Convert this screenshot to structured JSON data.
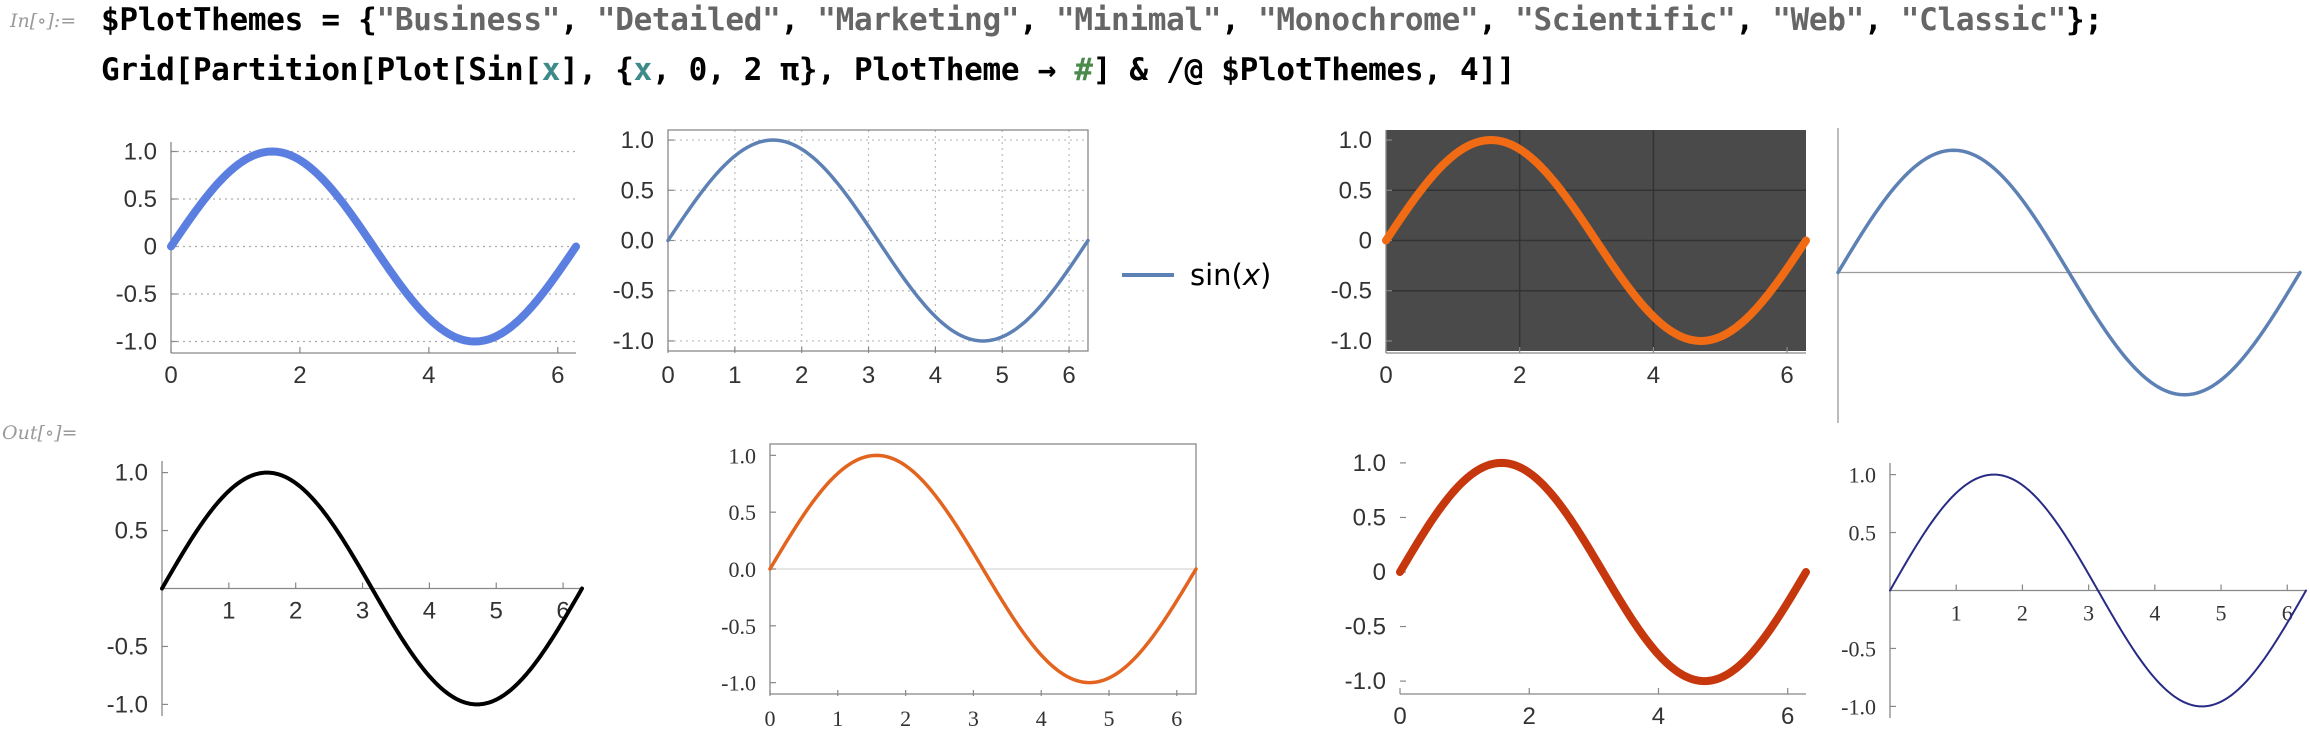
{
  "notebook": {
    "in_label": "In[∘]:=",
    "out_label": "Out[∘]=",
    "code_line1": [
      {
        "t": "$PlotThemes = {",
        "c": ""
      },
      {
        "t": "\"Business\"",
        "c": "str"
      },
      {
        "t": ", ",
        "c": ""
      },
      {
        "t": "\"Detailed\"",
        "c": "str"
      },
      {
        "t": ", ",
        "c": ""
      },
      {
        "t": "\"Marketing\"",
        "c": "str"
      },
      {
        "t": ", ",
        "c": ""
      },
      {
        "t": "\"Minimal\"",
        "c": "str"
      },
      {
        "t": ", ",
        "c": ""
      },
      {
        "t": "\"Monochrome\"",
        "c": "str"
      },
      {
        "t": ", ",
        "c": ""
      },
      {
        "t": "\"Scientific\"",
        "c": "str"
      },
      {
        "t": ", ",
        "c": ""
      },
      {
        "t": "\"Web\"",
        "c": "str"
      },
      {
        "t": ", ",
        "c": ""
      },
      {
        "t": "\"Classic\"",
        "c": "str"
      },
      {
        "t": "};",
        "c": ""
      }
    ],
    "code_line2": [
      {
        "t": "Grid[Partition[Plot[Sin[",
        "c": ""
      },
      {
        "t": "x",
        "c": "var"
      },
      {
        "t": "], {",
        "c": ""
      },
      {
        "t": "x",
        "c": "var"
      },
      {
        "t": ", 0, 2 π}, PlotTheme → ",
        "c": ""
      },
      {
        "t": "#",
        "c": "slot"
      },
      {
        "t": "] & /@ $PlotThemes, 4]]",
        "c": ""
      }
    ],
    "legend_label": "sin(x)"
  },
  "chart_data": [
    {
      "type": "line",
      "theme": "Business",
      "function": "Sin[x]",
      "x_range": [
        0,
        6.283
      ],
      "ylim": [
        -1.1,
        1.1
      ],
      "x_ticks": [
        "0",
        "2",
        "4",
        "6"
      ],
      "y_ticks": [
        "1.0",
        "0.5",
        "0",
        "-0.5",
        "-1.0"
      ],
      "color": "#5b7fe0",
      "background": "#ffffff",
      "grid": "horizontal dotted",
      "frame": "left/bottom"
    },
    {
      "type": "line",
      "theme": "Detailed",
      "function": "Sin[x]",
      "x_range": [
        0,
        6.283
      ],
      "ylim": [
        -1.1,
        1.1
      ],
      "x_ticks": [
        "0",
        "1",
        "2",
        "3",
        "4",
        "5",
        "6"
      ],
      "y_ticks": [
        "1.0",
        "0.5",
        "0.0",
        "-0.5",
        "-1.0"
      ],
      "color": "#5e81b5",
      "background": "#ffffff",
      "grid": "on dotted",
      "frame": "full",
      "legend": "sin(x)"
    },
    {
      "type": "line",
      "theme": "Marketing",
      "function": "Sin[x]",
      "x_range": [
        0,
        6.283
      ],
      "ylim": [
        -1.1,
        1.1
      ],
      "x_ticks": [
        "0",
        "2",
        "4",
        "6"
      ],
      "y_ticks": [
        "1.0",
        "0.5",
        "0",
        "-0.5",
        "-1.0"
      ],
      "color": "#f06b14",
      "background": "#4a4a4a",
      "grid": "on",
      "frame": "left/bottom"
    },
    {
      "type": "line",
      "theme": "Minimal",
      "function": "Sin[x]",
      "x_range": [
        0,
        6.283
      ],
      "ylim": [
        -1.1,
        1.1
      ],
      "x_ticks": [],
      "y_ticks": [],
      "color": "#5e81b5",
      "background": "#ffffff",
      "grid": "off",
      "frame": "axes only"
    },
    {
      "type": "line",
      "theme": "Monochrome",
      "function": "Sin[x]",
      "x_range": [
        0,
        6.283
      ],
      "ylim": [
        -1.1,
        1.1
      ],
      "x_ticks": [
        "1",
        "2",
        "3",
        "4",
        "5",
        "6"
      ],
      "y_ticks": [
        "1.0",
        "0.5",
        "-0.5",
        "-1.0"
      ],
      "color": "#000000",
      "background": "#ffffff",
      "grid": "off",
      "frame": "axes"
    },
    {
      "type": "line",
      "theme": "Scientific",
      "function": "Sin[x]",
      "x_range": [
        0,
        6.283
      ],
      "ylim": [
        -1.1,
        1.1
      ],
      "x_ticks": [
        "0",
        "1",
        "2",
        "3",
        "4",
        "5",
        "6"
      ],
      "y_ticks": [
        "1.0",
        "0.5",
        "0.0",
        "-0.5",
        "-1.0"
      ],
      "color": "#e2641f",
      "background": "#ffffff",
      "grid": "off",
      "frame": "full"
    },
    {
      "type": "line",
      "theme": "Web",
      "function": "Sin[x]",
      "x_range": [
        0,
        6.283
      ],
      "ylim": [
        -1.1,
        1.1
      ],
      "x_ticks": [
        "0",
        "2",
        "4",
        "6"
      ],
      "y_ticks": [
        "1.0",
        "0.5",
        "0",
        "-0.5",
        "-1.0"
      ],
      "color": "#c7370e",
      "background": "#ffffff",
      "grid": "off",
      "frame": "bottom"
    },
    {
      "type": "line",
      "theme": "Classic",
      "function": "Sin[x]",
      "x_range": [
        0,
        6.283
      ],
      "ylim": [
        -1.1,
        1.1
      ],
      "x_ticks": [
        "1",
        "2",
        "3",
        "4",
        "5",
        "6"
      ],
      "y_ticks": [
        "1.0",
        "0.5",
        "-0.5",
        "-1.0"
      ],
      "color": "#272b85",
      "background": "#ffffff",
      "grid": "off",
      "frame": "axes"
    }
  ]
}
